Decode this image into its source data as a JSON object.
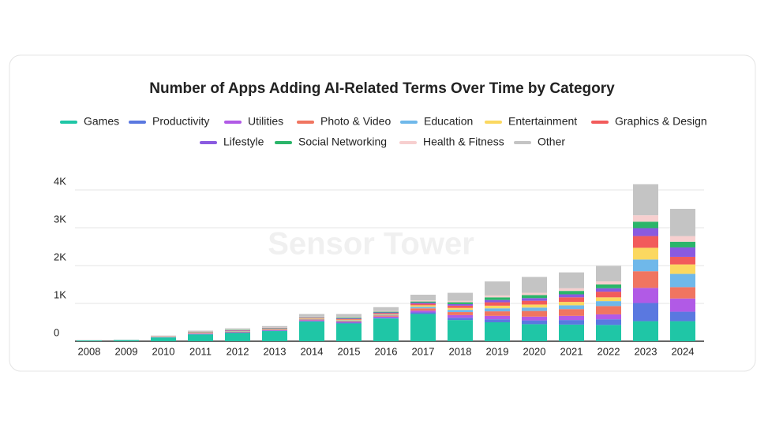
{
  "chart_data": {
    "type": "stacked_bar",
    "title": "Number of Apps Adding AI-Related Terms Over Time by Category",
    "watermark": "Sensor Tower",
    "categories": [
      "2008",
      "2009",
      "2010",
      "2011",
      "2012",
      "2013",
      "2014",
      "2015",
      "2016",
      "2017",
      "2018",
      "2019",
      "2020",
      "2021",
      "2022",
      "2023",
      "2024"
    ],
    "series": [
      {
        "name": "Games",
        "color": "#1fc6a6",
        "values": [
          20,
          30,
          100,
          180,
          220,
          270,
          520,
          470,
          600,
          720,
          560,
          500,
          450,
          440,
          430,
          530,
          530
        ]
      },
      {
        "name": "Productivity",
        "color": "#5a78e0",
        "values": [
          0,
          0,
          5,
          10,
          10,
          10,
          15,
          20,
          20,
          40,
          60,
          80,
          100,
          120,
          150,
          480,
          250
        ]
      },
      {
        "name": "Utilities",
        "color": "#b15ae6",
        "values": [
          0,
          0,
          5,
          10,
          10,
          10,
          20,
          20,
          30,
          50,
          70,
          90,
          100,
          110,
          130,
          400,
          350
        ]
      },
      {
        "name": "Photo & Video",
        "color": "#f07560",
        "values": [
          0,
          0,
          5,
          10,
          10,
          15,
          20,
          20,
          30,
          60,
          80,
          120,
          150,
          180,
          220,
          440,
          300
        ]
      },
      {
        "name": "Education",
        "color": "#6fb8ea",
        "values": [
          0,
          0,
          5,
          10,
          10,
          10,
          15,
          20,
          20,
          40,
          60,
          80,
          90,
          100,
          130,
          310,
          350
        ]
      },
      {
        "name": "Entertainment",
        "color": "#fbd860",
        "values": [
          0,
          0,
          5,
          10,
          10,
          10,
          15,
          20,
          20,
          40,
          50,
          70,
          80,
          90,
          100,
          310,
          250
        ]
      },
      {
        "name": "Graphics & Design",
        "color": "#f25b5b",
        "values": [
          0,
          0,
          5,
          10,
          10,
          10,
          15,
          20,
          20,
          40,
          60,
          90,
          100,
          120,
          150,
          310,
          200
        ]
      },
      {
        "name": "Lifestyle",
        "color": "#8a5ae0",
        "values": [
          0,
          0,
          0,
          5,
          10,
          10,
          10,
          15,
          20,
          30,
          40,
          60,
          70,
          80,
          90,
          210,
          250
        ]
      },
      {
        "name": "Social Networking",
        "color": "#2bb56a",
        "values": [
          0,
          0,
          0,
          5,
          10,
          10,
          10,
          20,
          20,
          30,
          50,
          70,
          80,
          90,
          100,
          170,
          150
        ]
      },
      {
        "name": "Health & Fitness",
        "color": "#f7cfcf",
        "values": [
          0,
          0,
          0,
          5,
          10,
          10,
          10,
          15,
          20,
          30,
          40,
          50,
          60,
          70,
          80,
          170,
          150
        ]
      },
      {
        "name": "Other",
        "color": "#c4c4c4",
        "values": [
          10,
          10,
          20,
          25,
          30,
          35,
          70,
          80,
          100,
          150,
          210,
          370,
          420,
          420,
          410,
          820,
          720
        ]
      }
    ],
    "ylim": [
      0,
      4200
    ],
    "yticks": [
      0,
      {
        "value": 1000,
        "label": "1K"
      },
      {
        "value": 2000,
        "label": "2K"
      },
      {
        "value": 3000,
        "label": "3K"
      },
      {
        "value": 4000,
        "label": "4K"
      }
    ],
    "grid": true
  }
}
